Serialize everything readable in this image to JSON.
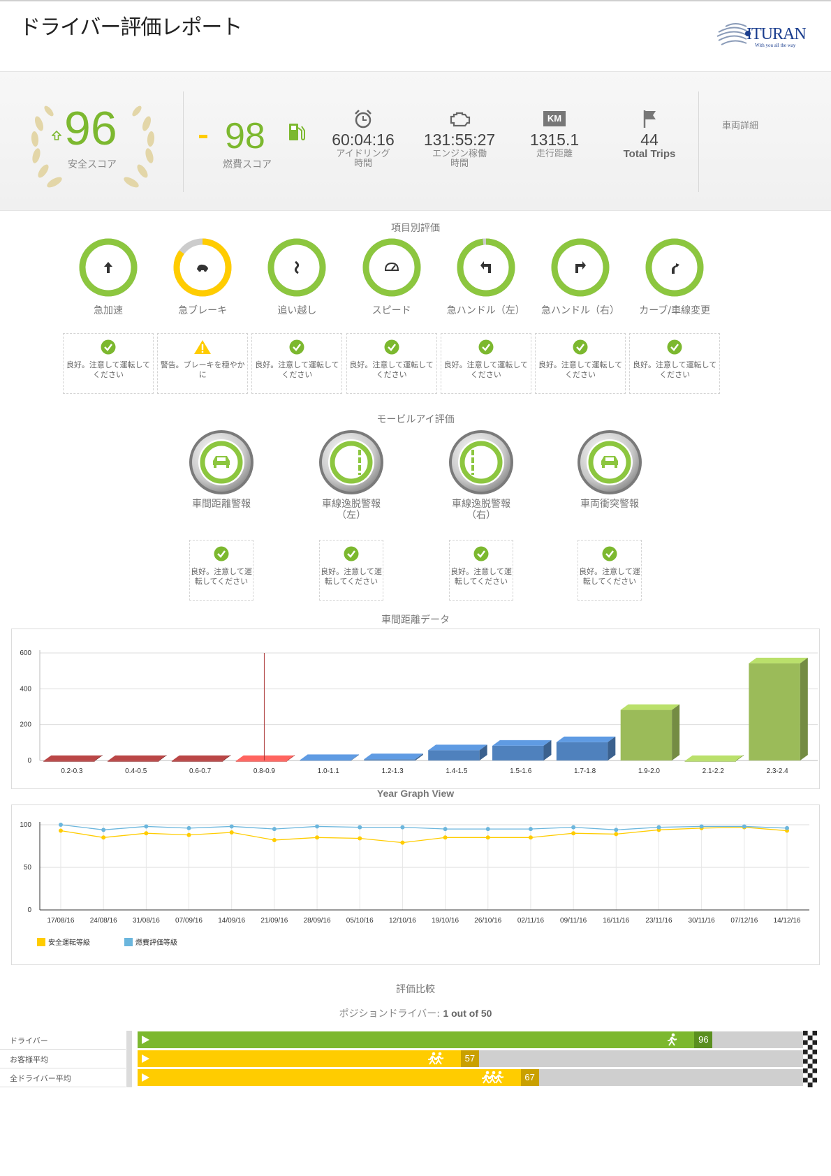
{
  "header": {
    "title": "ドライバー評価レポート",
    "logo_text": "ITURAN",
    "logo_tagline": "With you all the way"
  },
  "summary": {
    "safety_score": "96",
    "safety_label": "安全スコア",
    "fuel_score": "98",
    "fuel_label": "燃費スコア",
    "stats": [
      {
        "value": "60:04:16",
        "label1": "アイドリング",
        "label2": "時間",
        "icon": "alarm-clock-icon"
      },
      {
        "value": "131:55:27",
        "label1": "エンジン稼働",
        "label2": "時間",
        "icon": "engine-icon"
      },
      {
        "value": "1315.1",
        "label1": "走行距離",
        "label2": "",
        "icon": "km-icon",
        "icon_text": "KM"
      },
      {
        "value": "44",
        "label1": "Total Trips",
        "label2": "",
        "icon": "flag-icon"
      }
    ],
    "vehicle_details_label": "車両詳細"
  },
  "categories": {
    "title": "項目別評価",
    "items": [
      {
        "name": "急加速",
        "icon": "arrow-up-icon",
        "ring_fraction": 1.0,
        "ring_color": "#8cc63f",
        "status": "良好。注意して運転してください",
        "status_type": "ok"
      },
      {
        "name": "急ブレーキ",
        "icon": "brake-icon",
        "ring_fraction": 0.85,
        "ring_color": "#ffcc00",
        "status": "警告。ブレーキを穏やかに",
        "status_type": "warning"
      },
      {
        "name": "追い越し",
        "icon": "overtake-icon",
        "ring_fraction": 1.0,
        "ring_color": "#8cc63f",
        "status": "良好。注意して運転してください",
        "status_type": "ok"
      },
      {
        "name": "スピード",
        "icon": "speedometer-icon",
        "ring_fraction": 1.0,
        "ring_color": "#8cc63f",
        "status": "良好。注意して運転してください",
        "status_type": "ok"
      },
      {
        "name": "急ハンドル（左）",
        "icon": "turn-left-icon",
        "ring_fraction": 0.98,
        "ring_color": "#8cc63f",
        "status": "良好。注意して運転してください",
        "status_type": "ok"
      },
      {
        "name": "急ハンドル（右）",
        "icon": "turn-right-icon",
        "ring_fraction": 1.0,
        "ring_color": "#8cc63f",
        "status": "良好。注意して運転してください",
        "status_type": "ok"
      },
      {
        "name": "カーブ/車線変更",
        "icon": "lane-change-icon",
        "ring_fraction": 1.0,
        "ring_color": "#8cc63f",
        "status": "良好。注意して運転してください",
        "status_type": "ok"
      }
    ]
  },
  "mobileye": {
    "title": "モービルアイ評価",
    "items": [
      {
        "name1": "車間距離警報",
        "name2": "",
        "icon": "car-front-icon",
        "status": "良好。注意して運転してください"
      },
      {
        "name1": "車線逸脱警報",
        "name2": "（左）",
        "icon": "lane-left-icon",
        "status": "良好。注意して運転してください"
      },
      {
        "name1": "車線逸脱警報",
        "name2": "（右）",
        "icon": "lane-right-icon",
        "status": "良好。注意して運転してください"
      },
      {
        "name1": "車両衝突警報",
        "name2": "",
        "icon": "car-collision-icon",
        "status": "良好。注意して運転してください"
      }
    ]
  },
  "headway_title": "車間距離データ",
  "year_title": "Year Graph View",
  "chart_data": [
    {
      "type": "bar",
      "categories": [
        "0.2-0.3",
        "0.4-0.5",
        "0.6-0.7",
        "0.8-0.9",
        "1.0-1.1",
        "1.2-1.3",
        "1.4-1.5",
        "1.5-1.6",
        "1.7-1.8",
        "1.9-2.0",
        "2.1-2.2",
        "2.3-2.4"
      ],
      "values": [
        5,
        5,
        5,
        5,
        10,
        15,
        65,
        90,
        110,
        290,
        5,
        550
      ],
      "colors": [
        "#9b3a3a",
        "#9b3a3a",
        "#9b3a3a",
        "#d9534f",
        "#4f81bd",
        "#4f81bd",
        "#4f81bd",
        "#4f81bd",
        "#4f81bd",
        "#9bbb59",
        "#9bbb59",
        "#9bbb59"
      ],
      "ylim": [
        0,
        600
      ],
      "yticks": [
        0,
        200,
        400,
        600
      ],
      "marker_category": "0.8-0.9",
      "grid": true
    },
    {
      "type": "line",
      "x": [
        "17/08/16",
        "24/08/16",
        "31/08/16",
        "07/09/16",
        "14/09/16",
        "21/09/16",
        "28/09/16",
        "05/10/16",
        "12/10/16",
        "19/10/16",
        "26/10/16",
        "02/11/16",
        "09/11/16",
        "16/11/16",
        "23/11/16",
        "30/11/16",
        "07/12/16",
        "14/12/16"
      ],
      "series": [
        {
          "name": "安全運転等級",
          "color": "#ffcc00",
          "values": [
            93,
            85,
            90,
            88,
            91,
            82,
            85,
            84,
            79,
            85,
            85,
            85,
            90,
            89,
            94,
            96,
            97,
            93
          ]
        },
        {
          "name": "燃費評価等級",
          "color": "#6bb6dd",
          "values": [
            100,
            94,
            98,
            96,
            98,
            95,
            98,
            97,
            97,
            95,
            95,
            95,
            97,
            94,
            97,
            98,
            98,
            96
          ]
        }
      ],
      "ylim": [
        0,
        100
      ],
      "yticks": [
        0,
        50,
        100
      ],
      "legend_position": "bottom-left",
      "grid": true
    }
  ],
  "comparison": {
    "title": "評価比較",
    "position_prefix": "ポジションドライバー: ",
    "position_value": "1 out of 50",
    "rows": [
      {
        "label": "ドライバー",
        "value": 96,
        "value_text": "96",
        "fraction": 0.96,
        "color": "#7cb82f",
        "badge_color": "#5a8f1f",
        "icon": "runner-icon"
      },
      {
        "label": "お客様平均",
        "value": 57,
        "value_text": "57",
        "fraction": 0.57,
        "color": "#ffcc00",
        "badge_color": "#c9a000",
        "icon": "two-runners-icon"
      },
      {
        "label": "全ドライバー平均",
        "value": 67,
        "value_text": "67",
        "fraction": 0.67,
        "color": "#ffcc00",
        "badge_color": "#c9a000",
        "icon": "three-runners-icon"
      }
    ]
  }
}
